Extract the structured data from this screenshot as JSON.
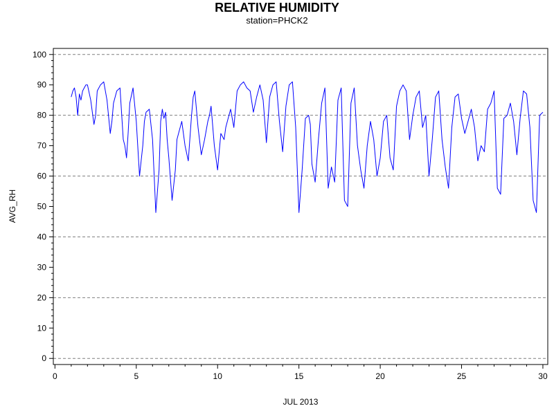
{
  "chart_data": {
    "type": "line",
    "title": "RELATIVE HUMIDITY",
    "subtitle": "station=PHCK2",
    "xlabel": "JUL 2013",
    "ylabel": "AVG_RH",
    "xlim": [
      -0.1,
      30.3
    ],
    "ylim": [
      -2,
      102
    ],
    "x_major_ticks": [
      0,
      5,
      10,
      15,
      20,
      25,
      30
    ],
    "y_major_ticks": [
      0,
      10,
      20,
      30,
      40,
      50,
      60,
      70,
      80,
      90,
      100
    ],
    "grid_y": [
      0,
      20,
      40,
      60,
      80,
      100
    ],
    "grid": "dashed horizontal at every 20",
    "legend": "none",
    "series": [
      {
        "color": "#0000ff",
        "x": [
          1.0,
          1.1,
          1.2,
          1.3,
          1.4,
          1.5,
          1.6,
          1.7,
          1.8,
          1.9,
          2.0,
          2.2,
          2.4,
          2.5,
          2.6,
          2.8,
          3.0,
          3.2,
          3.4,
          3.5,
          3.6,
          3.8,
          4.0,
          4.2,
          4.3,
          4.4,
          4.5,
          4.6,
          4.8,
          5.0,
          5.2,
          5.3,
          5.4,
          5.5,
          5.6,
          5.8,
          6.0,
          6.2,
          6.4,
          6.5,
          6.6,
          6.7,
          6.8,
          6.9,
          7.0,
          7.2,
          7.4,
          7.5,
          7.6,
          7.8,
          8.0,
          8.2,
          8.4,
          8.5,
          8.6,
          8.8,
          9.0,
          9.2,
          9.4,
          9.5,
          9.6,
          9.8,
          10.0,
          10.2,
          10.4,
          10.5,
          10.6,
          10.8,
          11.0,
          11.2,
          11.4,
          11.6,
          11.8,
          12.0,
          12.2,
          12.4,
          12.6,
          12.8,
          13.0,
          13.2,
          13.4,
          13.6,
          13.8,
          14.0,
          14.2,
          14.4,
          14.6,
          14.8,
          15.0,
          15.2,
          15.4,
          15.6,
          15.7,
          15.8,
          16.0,
          16.2,
          16.4,
          16.6,
          16.8,
          17.0,
          17.2,
          17.4,
          17.6,
          17.8,
          18.0,
          18.2,
          18.4,
          18.6,
          18.8,
          19.0,
          19.2,
          19.4,
          19.6,
          19.8,
          20.0,
          20.2,
          20.4,
          20.6,
          20.8,
          21.0,
          21.2,
          21.4,
          21.6,
          21.8,
          22.0,
          22.2,
          22.4,
          22.6,
          22.8,
          23.0,
          23.2,
          23.4,
          23.6,
          23.8,
          24.0,
          24.2,
          24.4,
          24.6,
          24.8,
          25.0,
          25.2,
          25.4,
          25.6,
          25.8,
          26.0,
          26.2,
          26.4,
          26.6,
          26.8,
          27.0,
          27.2,
          27.4,
          27.6,
          27.8,
          28.0,
          28.2,
          28.4,
          28.6,
          28.8,
          29.0,
          29.2,
          29.4,
          29.6,
          29.8,
          30.0
        ],
        "values": [
          86,
          88,
          89,
          86,
          80,
          87,
          85,
          88,
          89,
          90,
          90,
          85,
          77,
          80,
          88,
          90,
          91,
          85,
          74,
          78,
          84,
          88,
          89,
          72,
          70,
          66,
          74,
          84,
          89,
          78,
          60,
          65,
          70,
          78,
          81,
          82,
          72,
          48,
          62,
          78,
          82,
          79,
          81,
          72,
          66,
          52,
          62,
          72,
          74,
          78,
          70,
          65,
          80,
          86,
          88,
          76,
          67,
          72,
          78,
          80,
          83,
          70,
          62,
          74,
          72,
          76,
          78,
          82,
          76,
          88,
          90,
          91,
          89,
          88,
          81,
          86,
          90,
          85,
          71,
          86,
          90,
          91,
          78,
          68,
          83,
          90,
          91,
          76,
          48,
          62,
          79,
          80,
          77,
          64,
          58,
          72,
          84,
          89,
          56,
          63,
          58,
          85,
          89,
          52,
          50,
          84,
          89,
          70,
          62,
          56,
          70,
          78,
          72,
          60,
          66,
          78,
          80,
          66,
          62,
          83,
          88,
          90,
          88,
          72,
          80,
          86,
          88,
          76,
          80,
          60,
          72,
          86,
          88,
          72,
          63,
          56,
          76,
          86,
          87,
          79,
          74,
          78,
          82,
          76,
          65,
          70,
          68,
          82,
          84,
          88,
          56,
          54,
          79,
          80,
          84,
          78,
          67,
          79,
          88,
          87,
          76,
          52,
          48,
          80,
          81
        ]
      }
    ]
  }
}
